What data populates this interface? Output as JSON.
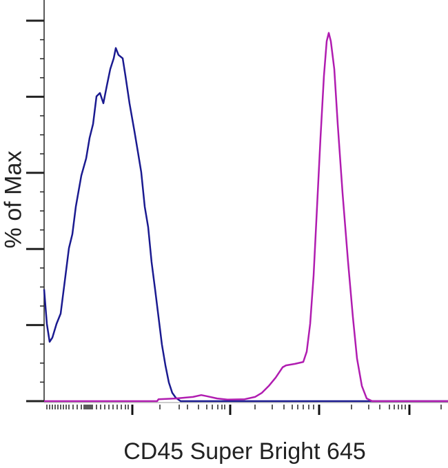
{
  "chart_data": {
    "type": "line",
    "title": "",
    "xlabel": "CD45 Super Bright 645",
    "ylabel": "% of Max",
    "xlim": [
      0,
      1000
    ],
    "ylim": [
      0,
      100
    ],
    "x_scale": "log-like (biexponential)",
    "grid": false,
    "legend": "none",
    "y_major_ticks": [
      0,
      20,
      40,
      60,
      80,
      100
    ],
    "series": [
      {
        "color": "#1a1a90",
        "points": [
          [
            0,
            29.4
          ],
          [
            6.8,
            20.3
          ],
          [
            13.7,
            15.6
          ],
          [
            20.5,
            16.7
          ],
          [
            30.7,
            20.3
          ],
          [
            40.9,
            23.0
          ],
          [
            52.9,
            33.0
          ],
          [
            61.4,
            40.2
          ],
          [
            70.0,
            43.9
          ],
          [
            78.5,
            51.1
          ],
          [
            92.1,
            59.3
          ],
          [
            104.1,
            63.8
          ],
          [
            112.6,
            69.2
          ],
          [
            121.1,
            72.8
          ],
          [
            129.7,
            80.1
          ],
          [
            138.2,
            81.0
          ],
          [
            146.7,
            78.3
          ],
          [
            155.2,
            82.8
          ],
          [
            163.8,
            87.3
          ],
          [
            172.3,
            90.1
          ],
          [
            177.4,
            92.8
          ],
          [
            184.2,
            91.0
          ],
          [
            194.5,
            90.1
          ],
          [
            201.3,
            85.5
          ],
          [
            211.5,
            78.3
          ],
          [
            223.5,
            71.0
          ],
          [
            232.0,
            65.6
          ],
          [
            240.5,
            60.2
          ],
          [
            249.1,
            51.1
          ],
          [
            257.6,
            45.7
          ],
          [
            266.1,
            36.6
          ],
          [
            274.7,
            29.4
          ],
          [
            283.2,
            22.1
          ],
          [
            291.7,
            14.9
          ],
          [
            300.3,
            9.4
          ],
          [
            308.8,
            4.9
          ],
          [
            317.3,
            2.2
          ],
          [
            325.9,
            0.9
          ],
          [
            337.8,
            0
          ],
          [
            1000,
            0
          ]
        ]
      },
      {
        "color": "#b01cb0",
        "points": [
          [
            0,
            0
          ],
          [
            279.8,
            0
          ],
          [
            283.2,
            0.5
          ],
          [
            325.9,
            0.7
          ],
          [
            368.6,
            1.1
          ],
          [
            389.1,
            1.6
          ],
          [
            402.7,
            1.3
          ],
          [
            428.3,
            0.7
          ],
          [
            453.9,
            0.4
          ],
          [
            496.6,
            0.5
          ],
          [
            522.2,
            1.1
          ],
          [
            539.2,
            2.2
          ],
          [
            556.3,
            4.0
          ],
          [
            573.4,
            6.2
          ],
          [
            590.4,
            8.9
          ],
          [
            598.9,
            9.4
          ],
          [
            621.1,
            9.8
          ],
          [
            641.6,
            10.3
          ],
          [
            650.2,
            13.0
          ],
          [
            658.7,
            20.3
          ],
          [
            667.2,
            33.0
          ],
          [
            675.8,
            51.1
          ],
          [
            684.3,
            69.2
          ],
          [
            692.8,
            85.5
          ],
          [
            699.7,
            94.6
          ],
          [
            704.8,
            96.8
          ],
          [
            709.9,
            94.6
          ],
          [
            718.4,
            87.3
          ],
          [
            727.0,
            72.8
          ],
          [
            738.9,
            54.7
          ],
          [
            752.6,
            36.6
          ],
          [
            764.5,
            22.1
          ],
          [
            774.7,
            11.2
          ],
          [
            786.7,
            4.0
          ],
          [
            798.6,
            0.7
          ],
          [
            812.3,
            0
          ],
          [
            1000,
            0
          ]
        ]
      }
    ]
  }
}
